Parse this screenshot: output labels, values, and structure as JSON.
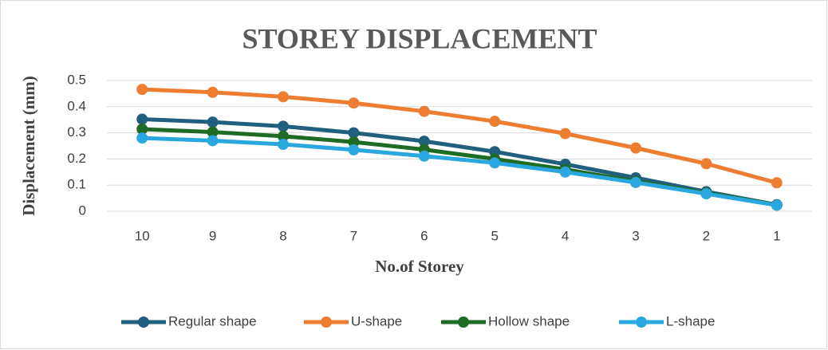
{
  "chart_data": {
    "type": "line",
    "title": "STOREY DISPLACEMENT",
    "x_label": "No.of Storey",
    "y_label": "Displacement (mm)",
    "categories": [
      "10",
      "9",
      "8",
      "7",
      "6",
      "5",
      "4",
      "3",
      "2",
      "1"
    ],
    "series": [
      {
        "name": "Regular shape",
        "color": "#215f7e",
        "values": [
          0.352,
          0.341,
          0.325,
          0.3,
          0.268,
          0.228,
          0.18,
          0.128,
          0.075,
          0.025
        ]
      },
      {
        "name": "U-shape",
        "color": "#ed7d31",
        "values": [
          0.466,
          0.455,
          0.438,
          0.414,
          0.382,
          0.344,
          0.297,
          0.242,
          0.182,
          0.109
        ]
      },
      {
        "name": "Hollow shape",
        "color": "#1e6b23",
        "values": [
          0.314,
          0.303,
          0.287,
          0.265,
          0.236,
          0.2,
          0.16,
          0.115,
          0.07,
          0.024
        ]
      },
      {
        "name": "L-shape",
        "color": "#2aa7df",
        "values": [
          0.28,
          0.27,
          0.256,
          0.235,
          0.211,
          0.185,
          0.15,
          0.11,
          0.067,
          0.023
        ]
      }
    ],
    "ylim": [
      0,
      0.5
    ],
    "yticks": [
      0,
      0.1,
      0.2,
      0.3,
      0.4,
      0.5
    ],
    "grid": true,
    "legend": "bottom"
  }
}
